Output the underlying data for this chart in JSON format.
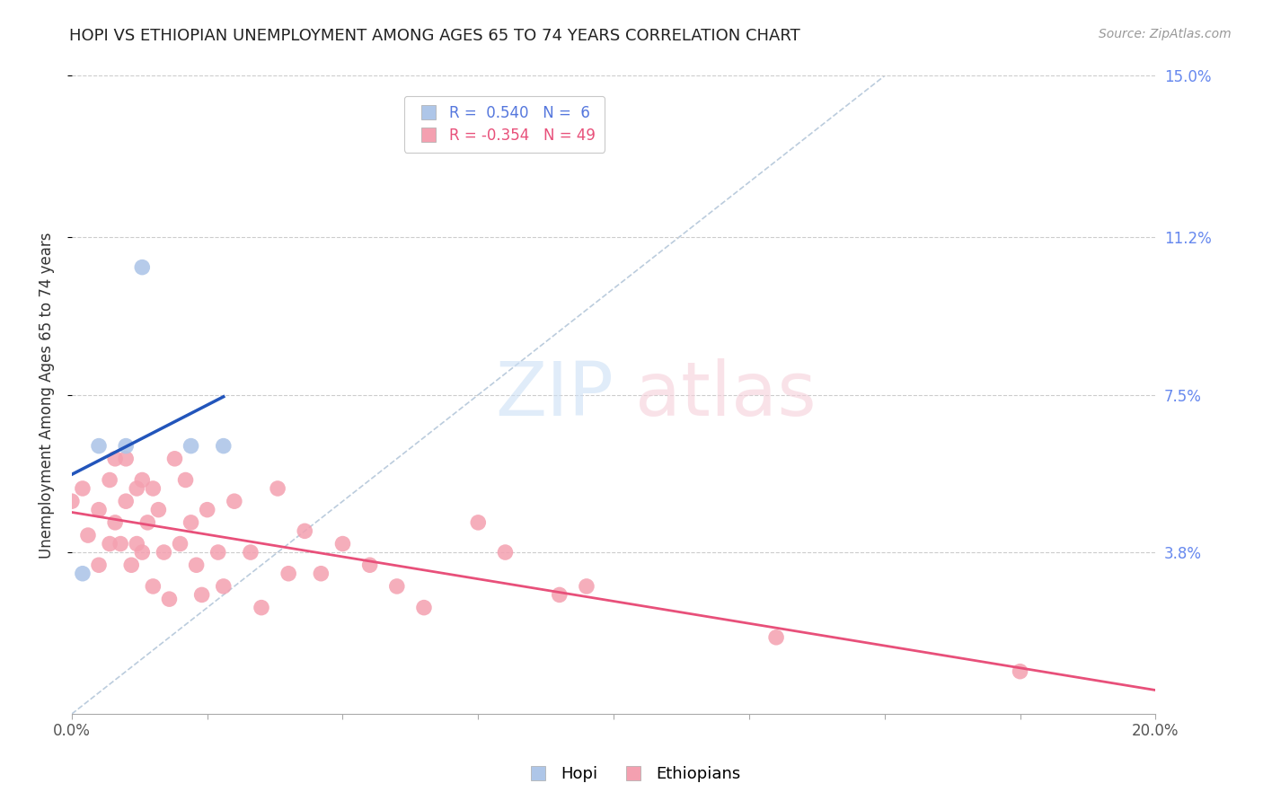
{
  "title": "HOPI VS ETHIOPIAN UNEMPLOYMENT AMONG AGES 65 TO 74 YEARS CORRELATION CHART",
  "source": "Source: ZipAtlas.com",
  "ylabel": "Unemployment Among Ages 65 to 74 years",
  "xlim": [
    0.0,
    0.2
  ],
  "ylim": [
    0.0,
    0.15
  ],
  "xtick_vals": [
    0.0,
    0.025,
    0.05,
    0.075,
    0.1,
    0.125,
    0.15,
    0.175,
    0.2
  ],
  "xtick_labels_show": {
    "0.0": "0.0%",
    "0.20": "20.0%"
  },
  "right_ytick_vals": [
    0.0,
    0.038,
    0.075,
    0.112,
    0.15
  ],
  "right_ytick_labels": [
    "",
    "3.8%",
    "7.5%",
    "11.2%",
    "15.0%"
  ],
  "grid_ytick_vals": [
    0.038,
    0.075,
    0.112,
    0.15
  ],
  "grid_color": "#cccccc",
  "background_color": "#ffffff",
  "hopi_color": "#aec6e8",
  "ethiopian_color": "#f4a0b0",
  "hopi_line_color": "#2255bb",
  "ethiopian_line_color": "#e8507a",
  "ref_line_color": "#bbccdd",
  "hopi_R": 0.54,
  "hopi_N": 6,
  "ethiopian_R": -0.354,
  "ethiopian_N": 49,
  "hopi_x": [
    0.002,
    0.005,
    0.01,
    0.013,
    0.022,
    0.028
  ],
  "hopi_y": [
    0.033,
    0.063,
    0.063,
    0.105,
    0.063,
    0.063
  ],
  "ethiopian_x": [
    0.0,
    0.002,
    0.003,
    0.005,
    0.005,
    0.007,
    0.007,
    0.008,
    0.008,
    0.009,
    0.01,
    0.01,
    0.011,
    0.012,
    0.012,
    0.013,
    0.013,
    0.014,
    0.015,
    0.015,
    0.016,
    0.017,
    0.018,
    0.019,
    0.02,
    0.021,
    0.022,
    0.023,
    0.024,
    0.025,
    0.027,
    0.028,
    0.03,
    0.033,
    0.035,
    0.038,
    0.04,
    0.043,
    0.046,
    0.05,
    0.055,
    0.06,
    0.065,
    0.075,
    0.08,
    0.09,
    0.095,
    0.13,
    0.175
  ],
  "ethiopian_y": [
    0.05,
    0.053,
    0.042,
    0.048,
    0.035,
    0.055,
    0.04,
    0.06,
    0.045,
    0.04,
    0.06,
    0.05,
    0.035,
    0.053,
    0.04,
    0.055,
    0.038,
    0.045,
    0.053,
    0.03,
    0.048,
    0.038,
    0.027,
    0.06,
    0.04,
    0.055,
    0.045,
    0.035,
    0.028,
    0.048,
    0.038,
    0.03,
    0.05,
    0.038,
    0.025,
    0.053,
    0.033,
    0.043,
    0.033,
    0.04,
    0.035,
    0.03,
    0.025,
    0.045,
    0.038,
    0.028,
    0.03,
    0.018,
    0.01
  ],
  "legend_box_color": "#ffffff",
  "legend_border_color": "#bbbbbb",
  "title_fontsize": 13,
  "source_fontsize": 10,
  "ylabel_fontsize": 12,
  "tick_fontsize": 12,
  "legend_fontsize": 12
}
